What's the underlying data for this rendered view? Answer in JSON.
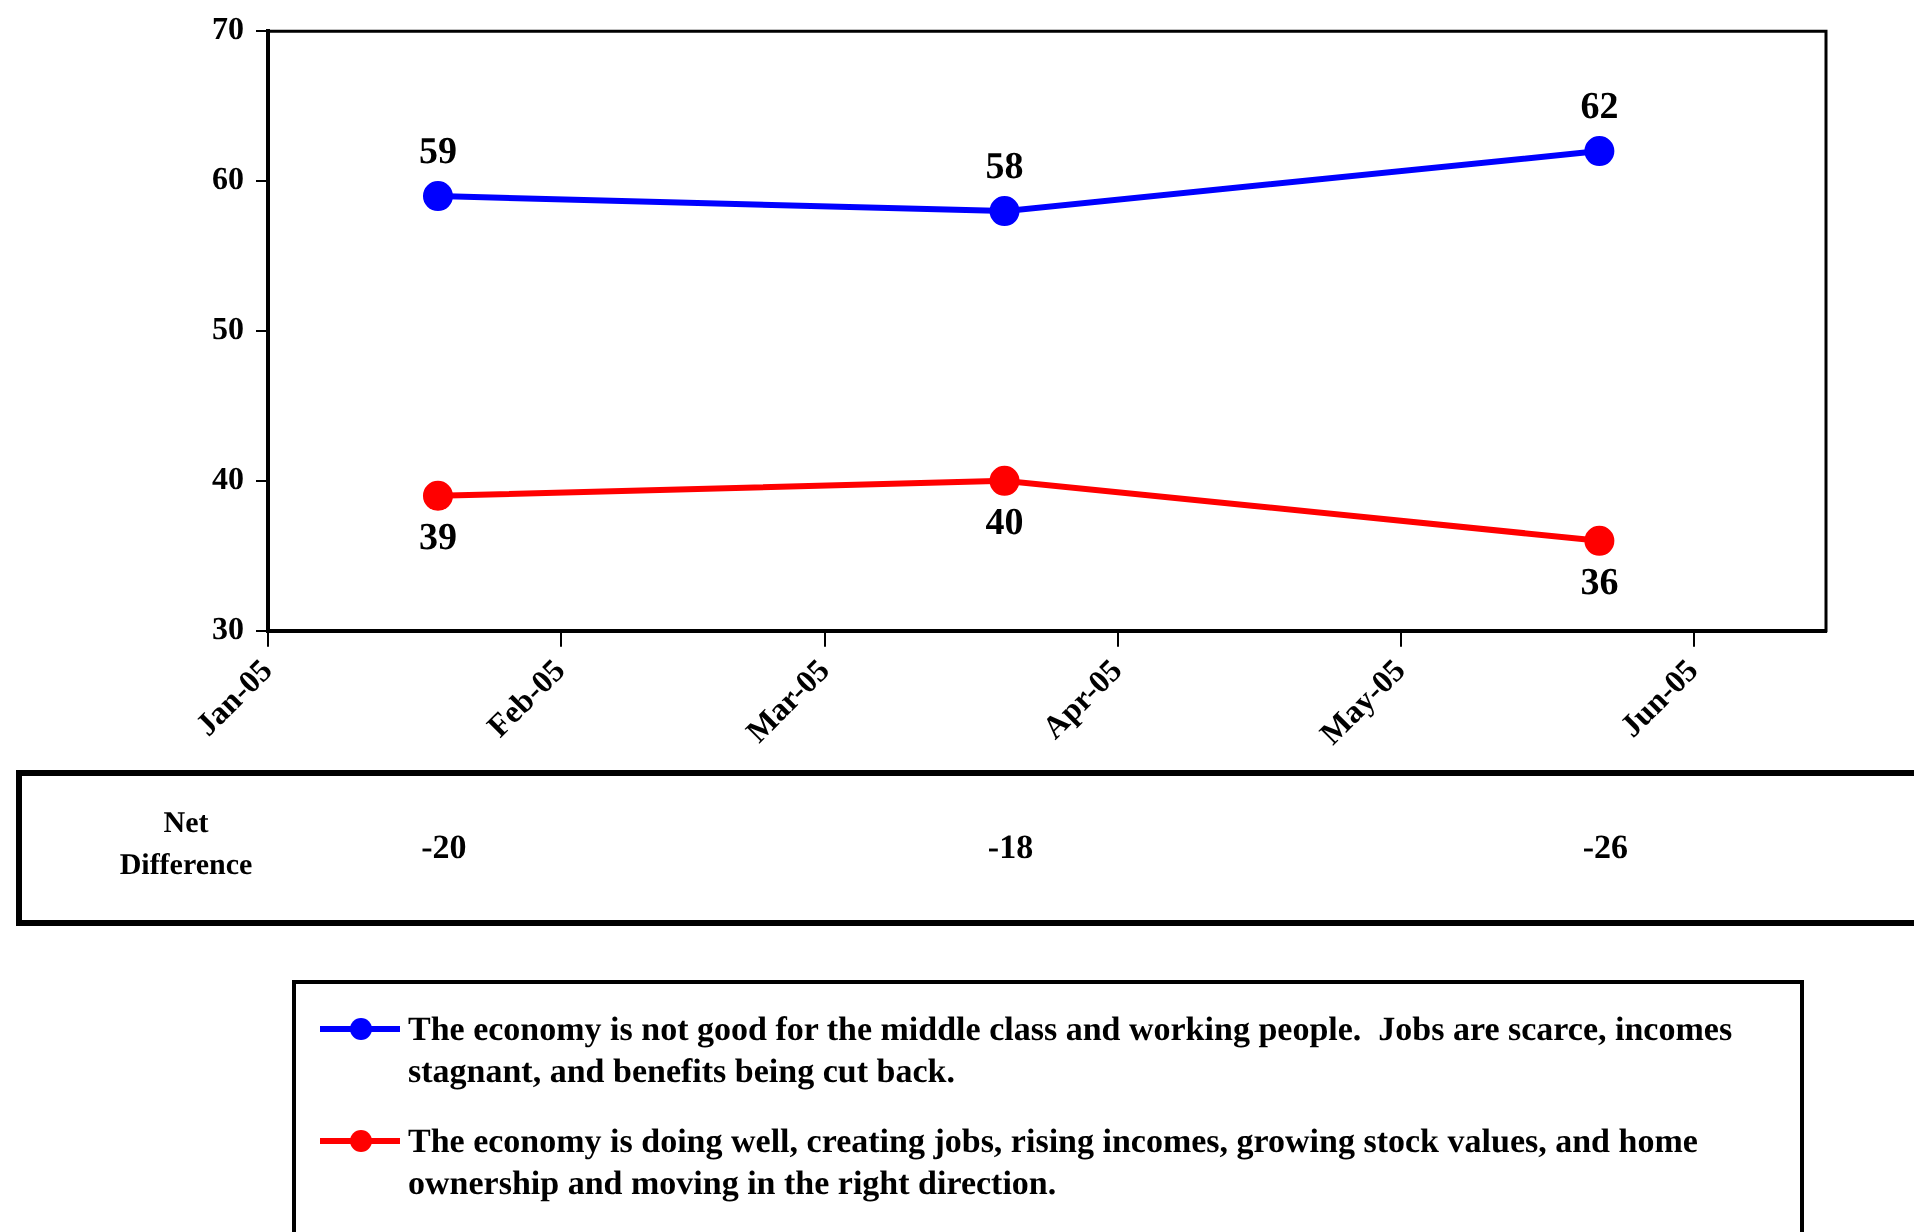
{
  "chart_data": {
    "type": "line",
    "x": [
      "2005-01-19",
      "2005-03-20",
      "2005-05-22"
    ],
    "series": [
      {
        "name": "The economy is not good for the middle class and working people.  Jobs are scarce, incomes stagnant, and benefits being cut back.",
        "color": "#0000ff",
        "values": [
          59,
          58,
          62
        ]
      },
      {
        "name": "The economy is doing well, creating jobs, rising incomes, growing stock values, and home ownership and moving in the right direction.",
        "color": "#ff0000",
        "values": [
          39,
          40,
          36
        ]
      }
    ],
    "ylim": [
      30,
      70
    ],
    "yticks": [
      30,
      40,
      50,
      60,
      70
    ],
    "xlim": [
      "2005-01-01",
      "2005-06-15"
    ],
    "xticks": [
      {
        "value": "2005-01-01",
        "label": "Jan-05"
      },
      {
        "value": "2005-02-01",
        "label": "Feb-05"
      },
      {
        "value": "2005-03-01",
        "label": "Mar-05"
      },
      {
        "value": "2005-04-01",
        "label": "Apr-05"
      },
      {
        "value": "2005-05-01",
        "label": "May-05"
      },
      {
        "value": "2005-06-01",
        "label": "Jun-05"
      }
    ],
    "annotations": [
      "Net Difference",
      "-20",
      "-18",
      "-26"
    ],
    "data_labels": true,
    "grid": false,
    "legend": "bottom",
    "marker": "circle",
    "line_style": "solid"
  }
}
